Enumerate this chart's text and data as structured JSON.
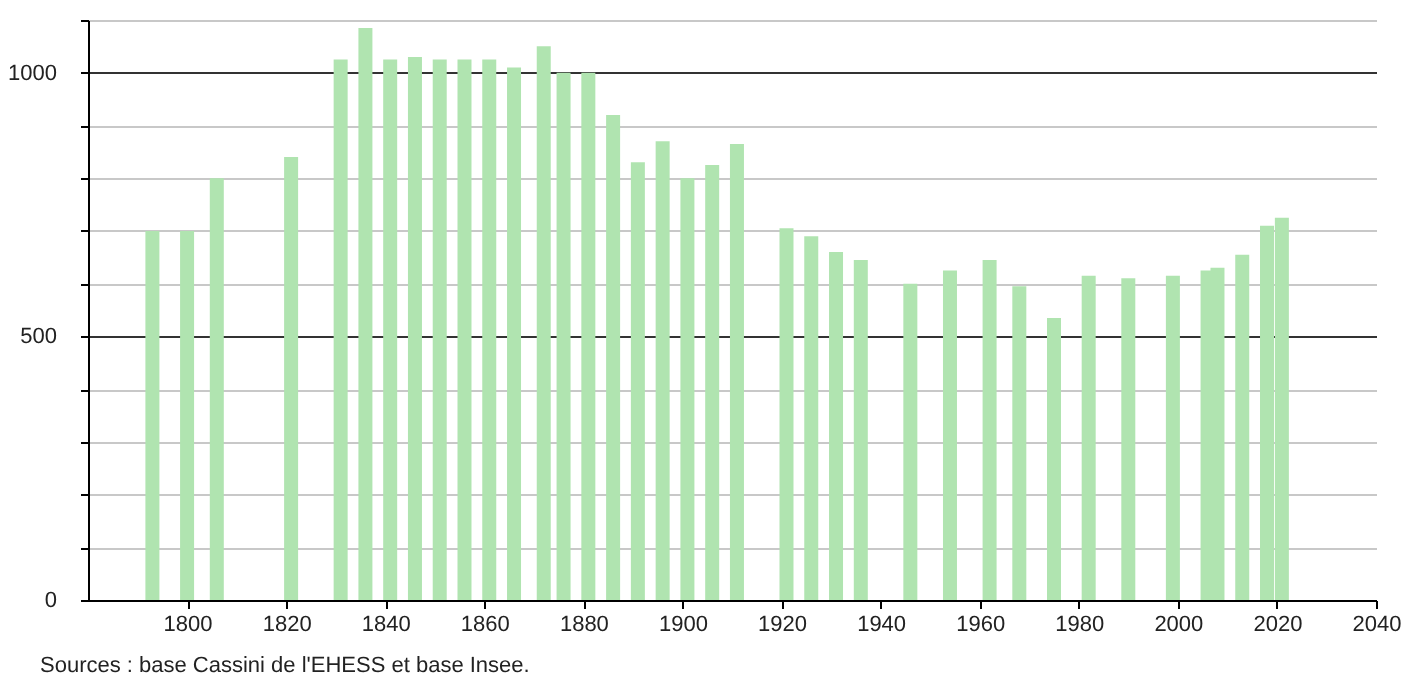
{
  "chart_data": {
    "type": "bar",
    "annotations": [
      "Sources : base Cassini de l'EHESS et base Insee."
    ],
    "x": [
      1793,
      1800,
      1806,
      1821,
      1831,
      1836,
      1841,
      1846,
      1851,
      1856,
      1861,
      1866,
      1872,
      1876,
      1881,
      1886,
      1891,
      1896,
      1901,
      1906,
      1911,
      1921,
      1926,
      1931,
      1936,
      1946,
      1954,
      1962,
      1968,
      1975,
      1982,
      1990,
      1999,
      2006,
      2008,
      2013,
      2018,
      2021
    ],
    "values": [
      700,
      700,
      800,
      840,
      1025,
      1085,
      1025,
      1030,
      1025,
      1025,
      1025,
      1010,
      1050,
      1000,
      1000,
      920,
      830,
      870,
      800,
      825,
      865,
      705,
      690,
      660,
      645,
      600,
      625,
      645,
      595,
      535,
      615,
      610,
      615,
      625,
      630,
      655,
      710,
      725
    ],
    "color": "#b0e4b0",
    "xlim": [
      1780,
      2040
    ],
    "xticks": [
      1800,
      1820,
      1840,
      1860,
      1880,
      1900,
      1920,
      1940,
      1960,
      1980,
      2000,
      2020,
      2040
    ],
    "ylim": [
      0,
      1100
    ],
    "yticks": [
      0,
      {
        "value": 100,
        "label": null
      },
      {
        "value": 200,
        "label": null
      },
      {
        "value": 300,
        "label": null
      },
      {
        "value": 400,
        "label": null
      },
      500,
      {
        "value": 600,
        "label": null
      },
      {
        "value": 700,
        "label": null
      },
      {
        "value": 800,
        "label": null
      },
      {
        "value": 900,
        "label": null
      },
      1000,
      {
        "value": 1100,
        "label": null
      }
    ],
    "grid": "y"
  }
}
